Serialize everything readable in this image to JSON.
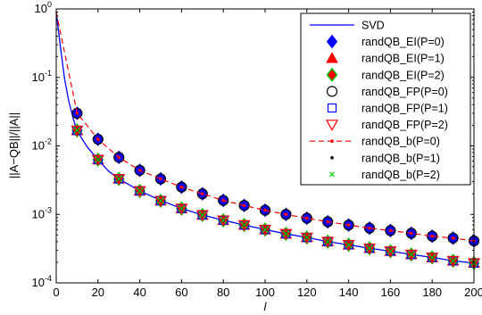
{
  "chart_data": {
    "type": "line",
    "xlabel": "l",
    "ylabel": "||A−QB||/||A||",
    "xlim": [
      0,
      200
    ],
    "ylim": [
      0.0001,
      1
    ],
    "yscale": "log",
    "x_ticks": [
      "0",
      "20",
      "40",
      "60",
      "80",
      "100",
      "120",
      "140",
      "160",
      "180",
      "200"
    ],
    "y_ticks": [
      {
        "mantissa": "10",
        "exp": "-4"
      },
      {
        "mantissa": "10",
        "exp": "-3"
      },
      {
        "mantissa": "10",
        "exp": "-2"
      },
      {
        "mantissa": "10",
        "exp": "-1"
      },
      {
        "mantissa": "10",
        "exp": "0"
      }
    ],
    "legend_position": "top-right",
    "x": [
      10,
      20,
      30,
      40,
      50,
      60,
      70,
      80,
      90,
      100,
      110,
      120,
      130,
      140,
      150,
      160,
      170,
      180,
      190,
      200
    ],
    "series": [
      {
        "name": "SVD",
        "style": "line",
        "color": "#0000ff",
        "x": [
          0,
          2,
          4,
          6,
          8,
          10,
          15,
          20,
          25,
          30,
          35,
          40,
          50,
          60,
          70,
          80,
          90,
          100,
          110,
          120,
          130,
          140,
          150,
          160,
          170,
          180,
          190,
          200
        ],
        "values": [
          0.9,
          0.28,
          0.095,
          0.045,
          0.026,
          0.0165,
          0.0095,
          0.0063,
          0.0043,
          0.0033,
          0.0027,
          0.0022,
          0.0016,
          0.00122,
          0.00098,
          0.00082,
          0.0007,
          0.0006,
          0.00052,
          0.00046,
          0.0004,
          0.00036,
          0.00032,
          0.00029,
          0.00026,
          0.000235,
          0.00021,
          0.000195
        ]
      },
      {
        "name": "randQB_EI(P=0)",
        "marker": "diamond",
        "color": "#0000ff",
        "values": [
          0.03,
          0.0125,
          0.0068,
          0.0044,
          0.0033,
          0.0025,
          0.002,
          0.0016,
          0.00135,
          0.00115,
          0.001,
          0.00088,
          0.00078,
          0.0007,
          0.00063,
          0.00058,
          0.00053,
          0.00048,
          0.00045,
          0.00041
        ]
      },
      {
        "name": "randQB_EI(P=1)",
        "marker": "triangle-up",
        "color": "#ff0000",
        "values": [
          0.0168,
          0.0063,
          0.0033,
          0.0022,
          0.00158,
          0.00122,
          0.00098,
          0.00082,
          0.0007,
          0.0006,
          0.00052,
          0.00046,
          0.0004,
          0.00036,
          0.00032,
          0.00029,
          0.00026,
          0.000235,
          0.00021,
          0.000195
        ]
      },
      {
        "name": "randQB_EI(P=2)",
        "marker": "diamond",
        "color": "#ff0000",
        "edge": "#00cc00",
        "values": [
          0.0168,
          0.0063,
          0.0033,
          0.0022,
          0.00158,
          0.00122,
          0.00098,
          0.00082,
          0.0007,
          0.0006,
          0.00052,
          0.00046,
          0.0004,
          0.00036,
          0.00032,
          0.00029,
          0.00026,
          0.000235,
          0.00021,
          0.000195
        ]
      },
      {
        "name": "randQB_FP(P=0)",
        "marker": "circle-open",
        "color": "#000000",
        "values": [
          0.03,
          0.0125,
          0.0068,
          0.0044,
          0.0033,
          0.0025,
          0.002,
          0.0016,
          0.00135,
          0.00115,
          0.001,
          0.00088,
          0.00078,
          0.0007,
          0.00063,
          0.00058,
          0.00053,
          0.00048,
          0.00045,
          0.00041
        ]
      },
      {
        "name": "randQB_FP(P=1)",
        "marker": "square-open",
        "color": "#0000ff",
        "values": [
          0.0168,
          0.0063,
          0.0033,
          0.0022,
          0.00158,
          0.00122,
          0.00098,
          0.00082,
          0.0007,
          0.0006,
          0.00052,
          0.00046,
          0.0004,
          0.00036,
          0.00032,
          0.00029,
          0.00026,
          0.000235,
          0.00021,
          0.000195
        ]
      },
      {
        "name": "randQB_FP(P=2)",
        "marker": "triangle-down-open",
        "color": "#ff0000",
        "values": [
          0.0168,
          0.0063,
          0.0033,
          0.0022,
          0.00158,
          0.00122,
          0.00098,
          0.00082,
          0.0007,
          0.0006,
          0.00052,
          0.00046,
          0.0004,
          0.00036,
          0.00032,
          0.00029,
          0.00026,
          0.000235,
          0.00021,
          0.000195
        ]
      },
      {
        "name": "randQB_b(P=0)",
        "marker": "dot",
        "style": "dashed",
        "color": "#ff0000",
        "x": [
          0,
          10,
          20,
          30,
          40,
          50,
          60,
          70,
          80,
          90,
          100,
          110,
          120,
          130,
          140,
          150,
          160,
          170,
          180,
          190,
          200
        ],
        "values": [
          0.9,
          0.03,
          0.0125,
          0.0068,
          0.0044,
          0.0033,
          0.0025,
          0.002,
          0.0016,
          0.00135,
          0.00115,
          0.001,
          0.00088,
          0.00078,
          0.0007,
          0.00063,
          0.00058,
          0.00053,
          0.00048,
          0.00045,
          0.00041
        ]
      },
      {
        "name": "randQB_b(P=1)",
        "marker": "dot",
        "color": "#000000",
        "values": [
          0.0168,
          0.0063,
          0.0033,
          0.0022,
          0.00158,
          0.00122,
          0.00098,
          0.00082,
          0.0007,
          0.0006,
          0.00052,
          0.00046,
          0.0004,
          0.00036,
          0.00032,
          0.00029,
          0.00026,
          0.000235,
          0.00021,
          0.000195
        ]
      },
      {
        "name": "randQB_b(P=2)",
        "marker": "x",
        "color": "#00cc00",
        "values": [
          0.0168,
          0.0063,
          0.0033,
          0.0022,
          0.00158,
          0.00122,
          0.00098,
          0.00082,
          0.0007,
          0.0006,
          0.00052,
          0.00046,
          0.0004,
          0.00036,
          0.00032,
          0.00029,
          0.00026,
          0.000235,
          0.00021,
          0.000195
        ]
      }
    ]
  }
}
